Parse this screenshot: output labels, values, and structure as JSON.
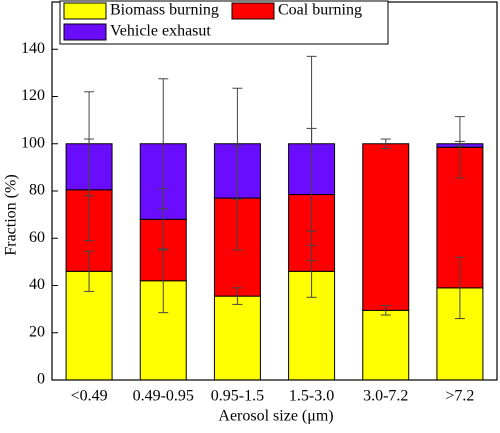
{
  "chart_data": {
    "type": "stacked_bar",
    "x_label": "Aerosol size (μm)",
    "y_label": "Fraction (%)",
    "categories": [
      "<0.49",
      "0.49-0.95",
      "0.95-1.5",
      "1.5-3.0",
      "3.0-7.2",
      ">7.2"
    ],
    "series": [
      {
        "name": "Biomass burning",
        "color": "#ffff00",
        "values": [
          46,
          42,
          35.5,
          46,
          29.5,
          39
        ],
        "errors": [
          8.5,
          13.5,
          3.5,
          11,
          2,
          13
        ]
      },
      {
        "name": "Coal burning",
        "color": "#ff0000",
        "values": [
          34.5,
          26,
          41.5,
          32.5,
          70.5,
          59.5
        ],
        "errors": [
          21.5,
          13,
          22,
          28,
          2,
          13
        ]
      },
      {
        "name": "Vehicle exhasut",
        "color": "#6a0dff",
        "values": [
          19.5,
          32,
          23,
          21.5,
          0,
          1.5
        ],
        "errors": [
          22,
          27.5,
          23.5,
          37,
          0,
          1
        ]
      }
    ],
    "ylim": [
      0,
      160
    ],
    "yticks": [
      0,
      20,
      40,
      60,
      80,
      100,
      120,
      140
    ]
  }
}
